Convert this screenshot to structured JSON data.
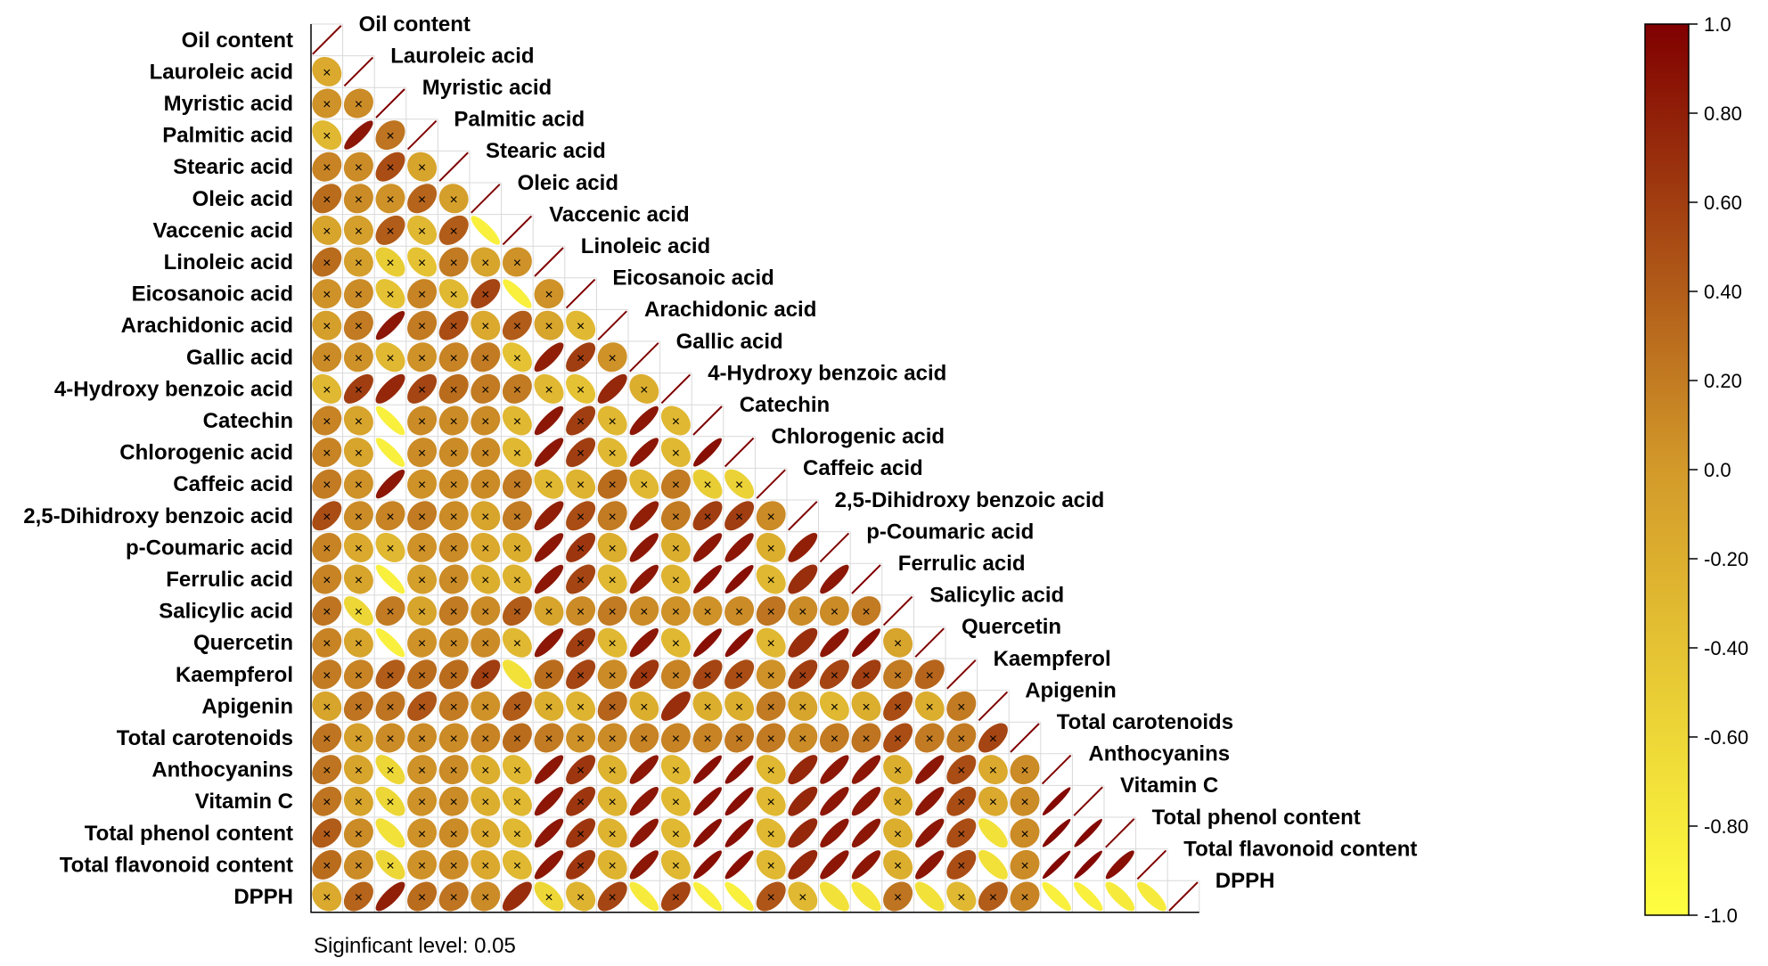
{
  "chart_data": {
    "type": "heatmap",
    "subtype": "correlation-ellipse-lower-triangle",
    "variables": [
      "Oil content",
      "Lauroleic acid",
      "Myristic acid",
      "Palmitic acid",
      "Stearic acid",
      "Oleic acid",
      "Vaccenic acid",
      "Linoleic acid",
      "Eicosanoic acid",
      "Arachidonic acid",
      "Gallic acid",
      "4-Hydroxy benzoic acid",
      "Catechin",
      "Chlorogenic acid",
      "Caffeic acid",
      "2,5-Dihidroxy benzoic acid",
      "p-Coumaric acid",
      "Ferrulic acid",
      "Salicylic acid",
      "Quercetin",
      "Kaempferol",
      "Apigenin",
      "Total carotenoids",
      "Anthocyanins",
      "Vitamin C",
      "Total phenol content",
      "Total flavonoid content",
      "DPPH"
    ],
    "correlations": [
      [],
      [
        -0.15
      ],
      [
        0.05,
        0.1
      ],
      [
        -0.3,
        0.85,
        0.25
      ],
      [
        0.15,
        0.1,
        0.5,
        -0.1
      ],
      [
        0.3,
        0.1,
        0.05,
        0.35,
        -0.05
      ],
      [
        -0.1,
        -0.05,
        0.4,
        -0.3,
        0.4,
        -0.85
      ],
      [
        0.3,
        -0.05,
        -0.5,
        -0.4,
        0.2,
        -0.1,
        0.05
      ],
      [
        0.05,
        0.1,
        -0.4,
        0.15,
        -0.3,
        0.55,
        -0.85,
        0.05
      ],
      [
        -0.05,
        0.2,
        0.85,
        0.2,
        0.5,
        -0.15,
        0.4,
        -0.1,
        -0.3
      ],
      [
        0.1,
        0.05,
        -0.3,
        0.05,
        0.15,
        0.2,
        -0.4,
        0.8,
        0.6,
        0.05
      ],
      [
        -0.3,
        0.6,
        0.75,
        0.55,
        0.3,
        0.2,
        0.2,
        -0.3,
        -0.4,
        0.75,
        -0.2
      ],
      [
        0.15,
        -0.1,
        -0.85,
        0.1,
        0.1,
        0.1,
        -0.3,
        0.85,
        0.6,
        -0.3,
        0.85,
        -0.3
      ],
      [
        0.15,
        -0.1,
        -0.85,
        0.1,
        0.1,
        0.1,
        -0.3,
        0.85,
        0.6,
        -0.3,
        0.85,
        -0.3,
        0.9
      ],
      [
        0.2,
        0.05,
        0.85,
        0.05,
        0.1,
        0.1,
        0.2,
        -0.3,
        -0.25,
        0.3,
        -0.3,
        0.2,
        -0.5,
        -0.55
      ],
      [
        0.5,
        0.1,
        0.15,
        0.2,
        0.1,
        -0.1,
        0.2,
        0.8,
        0.5,
        0.2,
        0.8,
        0.2,
        0.6,
        0.6,
        0.1
      ],
      [
        0.15,
        -0.15,
        -0.3,
        0.05,
        0.1,
        -0.15,
        -0.2,
        0.85,
        0.65,
        -0.2,
        0.85,
        -0.2,
        0.85,
        0.85,
        -0.2,
        0.8
      ],
      [
        0.15,
        -0.1,
        -0.85,
        -0.05,
        0.1,
        -0.2,
        -0.25,
        0.85,
        0.55,
        -0.3,
        0.85,
        -0.25,
        0.9,
        0.9,
        -0.3,
        0.7,
        0.85
      ],
      [
        0.25,
        -0.6,
        0.2,
        -0.1,
        0.2,
        0.1,
        0.4,
        -0.1,
        0.1,
        0.2,
        0.1,
        0.05,
        0.05,
        0.1,
        0.25,
        0.1,
        0.1,
        0.2
      ],
      [
        0.15,
        -0.1,
        -0.85,
        0.05,
        0.1,
        0.1,
        -0.3,
        0.85,
        0.6,
        -0.3,
        0.85,
        -0.3,
        0.9,
        0.9,
        -0.3,
        0.7,
        0.85,
        0.9,
        -0.1
      ],
      [
        0.2,
        0.15,
        0.4,
        0.3,
        0.3,
        0.6,
        -0.7,
        0.3,
        0.55,
        0.1,
        0.65,
        0.15,
        0.55,
        0.5,
        0.05,
        0.6,
        0.55,
        0.6,
        0.2,
        0.35
      ],
      [
        -0.1,
        0.25,
        0.25,
        0.45,
        0.2,
        0.05,
        0.4,
        -0.2,
        -0.25,
        0.35,
        -0.2,
        0.7,
        -0.2,
        -0.2,
        0.2,
        -0.1,
        -0.3,
        -0.2,
        0.5,
        -0.2,
        0.2
      ],
      [
        0.25,
        -0.05,
        0.1,
        0.1,
        0.1,
        0.15,
        0.3,
        0.2,
        0.05,
        0.1,
        0.15,
        0.15,
        0.15,
        0.2,
        0.2,
        0.1,
        0.2,
        0.25,
        0.5,
        0.2,
        0.2,
        0.55
      ],
      [
        0.25,
        -0.1,
        -0.6,
        0.05,
        0.1,
        -0.2,
        -0.3,
        0.85,
        0.65,
        -0.25,
        0.85,
        -0.3,
        0.9,
        0.9,
        -0.3,
        0.75,
        0.85,
        0.85,
        -0.2,
        0.85,
        0.5,
        -0.15,
        0.1
      ],
      [
        0.25,
        -0.1,
        -0.6,
        0.05,
        0.1,
        -0.2,
        -0.3,
        0.85,
        0.65,
        -0.25,
        0.85,
        -0.3,
        0.9,
        0.9,
        -0.3,
        0.75,
        0.85,
        0.85,
        -0.2,
        0.85,
        0.5,
        -0.15,
        0.1,
        0.95
      ],
      [
        0.4,
        0.1,
        -0.7,
        0.05,
        0.1,
        -0.15,
        -0.3,
        0.85,
        0.65,
        -0.25,
        0.85,
        -0.3,
        0.9,
        0.9,
        -0.3,
        0.75,
        0.85,
        0.85,
        -0.2,
        0.85,
        0.5,
        -0.7,
        0.1,
        0.95,
        0.95
      ],
      [
        0.3,
        0.1,
        -0.6,
        0.05,
        0.1,
        -0.15,
        -0.3,
        0.85,
        0.65,
        -0.25,
        0.85,
        -0.3,
        0.9,
        0.9,
        -0.3,
        0.75,
        0.85,
        0.85,
        -0.2,
        0.85,
        0.5,
        -0.7,
        0.1,
        0.95,
        0.95,
        0.9
      ],
      [
        -0.15,
        0.35,
        0.8,
        0.3,
        0.25,
        0.1,
        0.7,
        -0.6,
        -0.25,
        0.55,
        -0.8,
        0.55,
        -0.85,
        -0.85,
        0.45,
        -0.3,
        -0.7,
        -0.75,
        0.25,
        -0.7,
        -0.3,
        0.4,
        0.15,
        -0.85,
        -0.85,
        -0.8,
        -0.8
      ]
    ],
    "insignificant_marker": "×",
    "colorbar": {
      "ticks": [
        "1.0",
        "0.80",
        "0.60",
        "0.40",
        "0.20",
        "0.0",
        "-0.20",
        "-0.40",
        "-0.60",
        "-0.80",
        "-1.0"
      ],
      "range": [
        -1,
        1
      ],
      "colors": [
        "#ffff40",
        "#d39a2a",
        "#800000"
      ]
    },
    "note": "Siginficant level: 0.05",
    "significance_level": 0.05
  }
}
